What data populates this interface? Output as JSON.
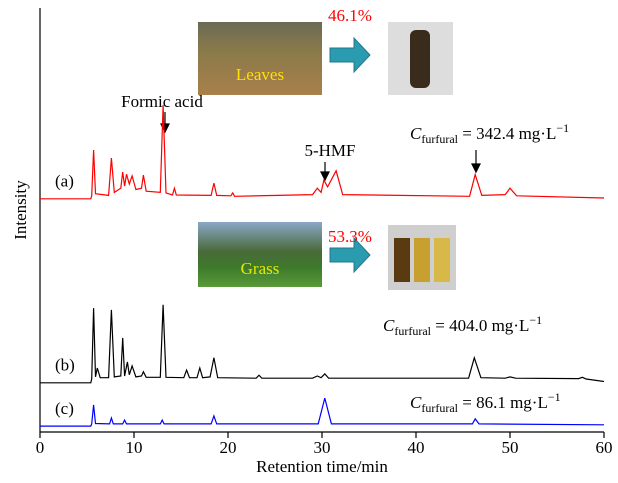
{
  "chart_data": {
    "type": "line",
    "xlabel": "Retention time/min",
    "ylabel": "Intensity",
    "xlim": [
      0,
      60
    ],
    "ylim": [
      0,
      100
    ],
    "xticks": [
      0,
      10,
      20,
      30,
      40,
      50,
      60
    ],
    "series": [
      {
        "name": "(a)",
        "color": "#ff0000",
        "x": [
          0,
          5.4,
          5.5,
          5.7,
          5.9,
          7.3,
          7.6,
          7.9,
          8.6,
          8.8,
          9.0,
          9.2,
          9.5,
          9.8,
          10.2,
          10.8,
          11,
          11.3,
          12.8,
          13.1,
          13.4,
          14.1,
          14.3,
          14.5,
          18.2,
          18.5,
          18.8,
          20.3,
          20.5,
          20.7,
          29,
          29.5,
          29.9,
          30.2,
          30.6,
          31.5,
          32.2,
          45.7,
          46.3,
          47,
          49.5,
          50,
          50.7,
          60
        ],
        "values": [
          55.0,
          55.0,
          55.7,
          66.5,
          56.2,
          55.8,
          64.6,
          56.5,
          57.5,
          61.3,
          58.0,
          60.8,
          58.5,
          60.4,
          57.2,
          57.5,
          60.6,
          56.8,
          56.5,
          77.1,
          56.4,
          55.9,
          57.5,
          55.9,
          55.8,
          58.7,
          55.8,
          55.7,
          56.4,
          55.6,
          56.0,
          57.5,
          56.5,
          59.4,
          57.8,
          61.6,
          56.0,
          55.6,
          60.7,
          55.8,
          56.0,
          57.5,
          55.7,
          55.2
        ]
      },
      {
        "name": "(b)",
        "color": "#000000",
        "x": [
          0,
          5.4,
          5.5,
          5.7,
          5.9,
          6.1,
          6.4,
          7.3,
          7.6,
          7.9,
          8.6,
          8.8,
          9.0,
          9.3,
          9.5,
          9.8,
          10.2,
          10.8,
          11,
          11.3,
          12.8,
          13.1,
          13.4,
          15.3,
          15.6,
          15.9,
          16.7,
          17,
          17.3,
          18.1,
          18.5,
          18.9,
          23,
          23.3,
          23.6,
          29,
          29.5,
          29.9,
          30.3,
          30.7,
          45.6,
          46.2,
          46.9,
          49.5,
          50,
          50.6,
          57.3,
          57.7,
          58.1,
          60
        ],
        "values": [
          11.6,
          11.6,
          12.5,
          29.2,
          13.0,
          15.1,
          12.8,
          12.8,
          28.8,
          13.0,
          13.2,
          22.2,
          13.2,
          16.5,
          13.5,
          15.6,
          13.0,
          13.2,
          14.2,
          12.9,
          12.9,
          30.0,
          12.9,
          12.8,
          14.6,
          12.8,
          12.8,
          15.1,
          12.8,
          13.0,
          17.5,
          12.8,
          12.7,
          13.4,
          12.7,
          12.7,
          13.2,
          12.8,
          13.7,
          12.7,
          12.7,
          17.5,
          12.8,
          12.7,
          13.0,
          12.7,
          12.6,
          12.9,
          12.5,
          11.9
        ]
      },
      {
        "name": "(c)",
        "color": "#0000ff",
        "x": [
          0,
          5.4,
          5.5,
          5.7,
          5.9,
          7.4,
          7.6,
          7.8,
          8.8,
          9.0,
          9.2,
          12.8,
          13,
          13.2,
          18.2,
          18.5,
          18.8,
          29.6,
          30.3,
          31,
          46,
          46.3,
          46.7,
          60
        ],
        "values": [
          1.4,
          1.4,
          1.9,
          6.4,
          2.0,
          1.9,
          3.3,
          1.9,
          1.9,
          2.8,
          1.9,
          1.9,
          2.8,
          1.9,
          1.9,
          3.8,
          1.9,
          1.9,
          8.0,
          1.9,
          1.9,
          3.1,
          1.9,
          1.7
        ]
      }
    ],
    "peak_labels": [
      "Formic acid",
      "5-HMF"
    ],
    "concentrations": [
      {
        "symbol": "C",
        "subscript": "furfural",
        "text": " = 342.4 mg·L",
        "superscript": "−1"
      },
      {
        "symbol": "C",
        "subscript": "furfural",
        "text": " = 404.0 mg·L",
        "superscript": "−1"
      },
      {
        "symbol": "C",
        "subscript": "furfural",
        "text": " = 86.1 mg·L",
        "superscript": "−1"
      }
    ],
    "insets": [
      {
        "caption": "Leaves",
        "yield": "46.1%"
      },
      {
        "caption": "Grass",
        "yield": "53.3%"
      }
    ]
  }
}
